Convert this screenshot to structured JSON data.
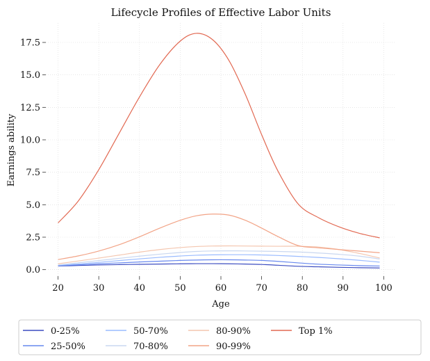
{
  "chart_data": {
    "type": "line",
    "title": "Lifecycle Profiles of Effective Labor Units",
    "xlabel": "Age",
    "ylabel": "Earnings ability",
    "xlim": [
      17,
      103
    ],
    "ylim": [
      -0.5,
      19.0
    ],
    "xticks": [
      20,
      30,
      40,
      50,
      60,
      70,
      80,
      90,
      100
    ],
    "xtick_labels": [
      "20",
      "30",
      "40",
      "50",
      "60",
      "70",
      "80",
      "90",
      "100"
    ],
    "yticks": [
      0.0,
      2.5,
      5.0,
      7.5,
      10.0,
      12.5,
      15.0,
      17.5
    ],
    "ytick_labels": [
      "0.0",
      "2.5",
      "5.0",
      "7.5",
      "10.0",
      "12.5",
      "15.0",
      "17.5"
    ],
    "grid": true,
    "legend_position": "bottom",
    "x": [
      20,
      25,
      30,
      35,
      40,
      45,
      50,
      54,
      58,
      62,
      66,
      70,
      74,
      79,
      84,
      89,
      94,
      99
    ],
    "series": [
      {
        "name": "0-25%",
        "color": "#3b4cc0",
        "values": [
          0.28,
          0.32,
          0.36,
          0.39,
          0.41,
          0.43,
          0.45,
          0.46,
          0.46,
          0.45,
          0.43,
          0.4,
          0.34,
          0.26,
          0.22,
          0.18,
          0.15,
          0.13
        ]
      },
      {
        "name": "25-50%",
        "color": "#6788ee",
        "values": [
          0.3,
          0.37,
          0.45,
          0.52,
          0.59,
          0.65,
          0.71,
          0.74,
          0.76,
          0.76,
          0.74,
          0.71,
          0.64,
          0.52,
          0.42,
          0.36,
          0.31,
          0.28
        ]
      },
      {
        "name": "50-70%",
        "color": "#9abbff",
        "values": [
          0.33,
          0.44,
          0.56,
          0.7,
          0.83,
          0.95,
          1.05,
          1.11,
          1.14,
          1.15,
          1.15,
          1.13,
          1.09,
          1.02,
          0.94,
          0.84,
          0.72,
          0.58
        ]
      },
      {
        "name": "70-80%",
        "color": "#c9d7f0",
        "values": [
          0.36,
          0.53,
          0.7,
          0.87,
          1.04,
          1.19,
          1.32,
          1.4,
          1.44,
          1.45,
          1.44,
          1.42,
          1.4,
          1.36,
          1.28,
          1.18,
          1.04,
          0.82
        ]
      },
      {
        "name": "80-90%",
        "color": "#f4c6af",
        "values": [
          0.45,
          0.67,
          0.89,
          1.12,
          1.35,
          1.55,
          1.7,
          1.78,
          1.82,
          1.83,
          1.82,
          1.81,
          1.8,
          1.8,
          1.74,
          1.55,
          1.25,
          0.9
        ]
      },
      {
        "name": "90-99%",
        "color": "#f2a386",
        "values": [
          0.78,
          1.06,
          1.43,
          1.92,
          2.53,
          3.2,
          3.8,
          4.15,
          4.28,
          4.2,
          3.8,
          3.2,
          2.55,
          1.85,
          1.68,
          1.55,
          1.43,
          1.3
        ]
      },
      {
        "name": "Top 1%",
        "color": "#e26952",
        "values": [
          3.6,
          5.3,
          7.7,
          10.5,
          13.3,
          15.8,
          17.6,
          18.2,
          17.7,
          16.1,
          13.5,
          10.4,
          7.6,
          5.05,
          4.0,
          3.3,
          2.8,
          2.45
        ]
      }
    ]
  }
}
